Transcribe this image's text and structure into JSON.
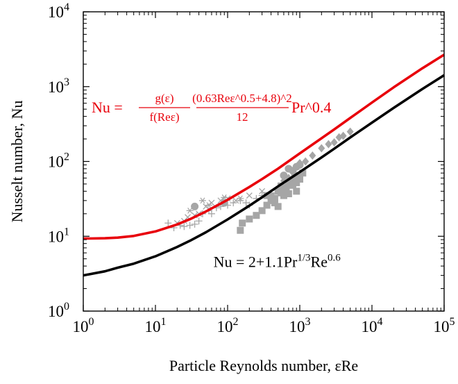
{
  "chart_data": {
    "type": "line",
    "xlabel": "Particle Reynolds number, εRe",
    "ylabel": "Nusselt number, Nu",
    "x_scale": "log",
    "y_scale": "log",
    "xlim": [
      1,
      100000
    ],
    "ylim": [
      1,
      10000
    ],
    "x_ticks": [
      {
        "value": 1,
        "mantissa": "10",
        "exp": "0"
      },
      {
        "value": 10,
        "mantissa": "10",
        "exp": "1"
      },
      {
        "value": 100,
        "mantissa": "10",
        "exp": "2"
      },
      {
        "value": 1000,
        "mantissa": "10",
        "exp": "3"
      },
      {
        "value": 10000,
        "mantissa": "10",
        "exp": "4"
      },
      {
        "value": 100000,
        "mantissa": "10",
        "exp": "5"
      }
    ],
    "y_ticks": [
      {
        "value": 1,
        "mantissa": "10",
        "exp": "0"
      },
      {
        "value": 10,
        "mantissa": "10",
        "exp": "1"
      },
      {
        "value": 100,
        "mantissa": "10",
        "exp": "2"
      },
      {
        "value": 1000,
        "mantissa": "10",
        "exp": "3"
      },
      {
        "value": 10000,
        "mantissa": "10",
        "exp": "4"
      }
    ],
    "grid": false,
    "legend": "none",
    "colors": {
      "red_curve": "#e8000b",
      "black_curve": "#000000",
      "markers": "#a6a6a6"
    },
    "series": [
      {
        "x": [
          1,
          2,
          3,
          5,
          10,
          20,
          30,
          50,
          100,
          200,
          300,
          500,
          1000,
          2000,
          3000,
          5000,
          10000,
          20000,
          50000,
          100000
        ],
        "y": [
          9.3,
          9.4,
          9.6,
          10.1,
          11.6,
          14.4,
          16.9,
          21.4,
          30.7,
          45.5,
          58.1,
          80.0,
          128,
          204,
          268,
          381,
          613,
          978,
          1760,
          2670
        ]
      },
      {
        "x": [
          1,
          2,
          3,
          5,
          10,
          20,
          30,
          50,
          100,
          200,
          300,
          500,
          1000,
          2000,
          3000,
          5000,
          10000,
          20000,
          50000,
          100000
        ],
        "y": [
          3.0,
          3.4,
          3.8,
          4.3,
          5.4,
          7.2,
          8.7,
          11.3,
          16.8,
          25.6,
          33.2,
          46.5,
          72.1,
          113,
          148,
          209,
          330,
          520,
          930,
          1420
        ]
      }
    ],
    "annotations": [
      {
        "text_parts": [
          "Nu = 2+1.1Pr",
          "1/3",
          "Re",
          "0.6"
        ],
        "color": "#000000",
        "anchor_x": 300,
        "anchor_y": 5
      },
      {
        "lhs": "Nu =",
        "frac1_num": "g(ε)",
        "frac1_den": "f(Reε)",
        "frac2_num": "(0.63Reε^0.5+4.8)^2",
        "frac2_den": "12",
        "rhs": "Pr^0.4",
        "color": "#e8000b",
        "anchor_x": 1.2,
        "anchor_y": 800
      }
    ],
    "scatter_groups": [
      {
        "marker": "square",
        "points": [
          [
            150,
            12
          ],
          [
            160,
            15
          ],
          [
            200,
            17
          ],
          [
            250,
            19
          ],
          [
            300,
            22
          ],
          [
            350,
            26
          ],
          [
            400,
            30
          ],
          [
            450,
            32
          ],
          [
            500,
            25
          ],
          [
            550,
            38
          ],
          [
            600,
            42
          ],
          [
            650,
            45
          ],
          [
            700,
            50
          ],
          [
            750,
            55
          ],
          [
            800,
            48
          ],
          [
            850,
            60
          ],
          [
            900,
            52
          ],
          [
            950,
            65
          ],
          [
            1000,
            58
          ],
          [
            1100,
            70
          ],
          [
            400,
            34
          ],
          [
            550,
            47
          ],
          [
            700,
            37
          ],
          [
            900,
            40
          ],
          [
            600,
            35
          ],
          [
            500,
            40
          ],
          [
            450,
            28
          ],
          [
            350,
            35
          ]
        ]
      },
      {
        "marker": "circle",
        "points": [
          [
            35,
            25
          ],
          [
            90,
            28
          ],
          [
            700,
            80
          ],
          [
            800,
            75
          ],
          [
            900,
            85
          ],
          [
            600,
            65
          ],
          [
            1000,
            90
          ]
        ]
      },
      {
        "marker": "diamond",
        "points": [
          [
            600,
            55
          ],
          [
            800,
            72
          ],
          [
            1000,
            95
          ],
          [
            1500,
            120
          ],
          [
            2000,
            150
          ],
          [
            3000,
            180
          ],
          [
            4000,
            220
          ],
          [
            5000,
            250
          ],
          [
            3500,
            210
          ],
          [
            2500,
            170
          ],
          [
            1200,
            100
          ],
          [
            700,
            60
          ]
        ]
      },
      {
        "marker": "plus",
        "points": [
          [
            15,
            15
          ],
          [
            18,
            13
          ],
          [
            22,
            14
          ],
          [
            25,
            13.5
          ],
          [
            30,
            14
          ],
          [
            35,
            14.5
          ],
          [
            40,
            16
          ],
          [
            45,
            20
          ],
          [
            55,
            22
          ],
          [
            60,
            20
          ],
          [
            70,
            24
          ],
          [
            80,
            25
          ],
          [
            100,
            26
          ],
          [
            120,
            28
          ],
          [
            150,
            30
          ],
          [
            180,
            28
          ],
          [
            200,
            26
          ],
          [
            250,
            32
          ],
          [
            300,
            35
          ],
          [
            400,
            38
          ],
          [
            600,
            48
          ],
          [
            800,
            60
          ]
        ]
      },
      {
        "marker": "x",
        "points": [
          [
            20,
            15
          ],
          [
            25,
            16
          ],
          [
            28,
            18
          ],
          [
            35,
            19
          ],
          [
            40,
            20
          ],
          [
            50,
            25
          ],
          [
            60,
            28
          ],
          [
            80,
            30
          ],
          [
            100,
            32
          ],
          [
            130,
            30
          ],
          [
            200,
            35
          ],
          [
            300,
            40
          ]
        ]
      },
      {
        "marker": "asterisk",
        "points": [
          [
            45,
            30
          ],
          [
            55,
            26
          ],
          [
            30,
            22
          ],
          [
            90,
            33
          ],
          [
            150,
            32
          ]
        ]
      }
    ]
  }
}
